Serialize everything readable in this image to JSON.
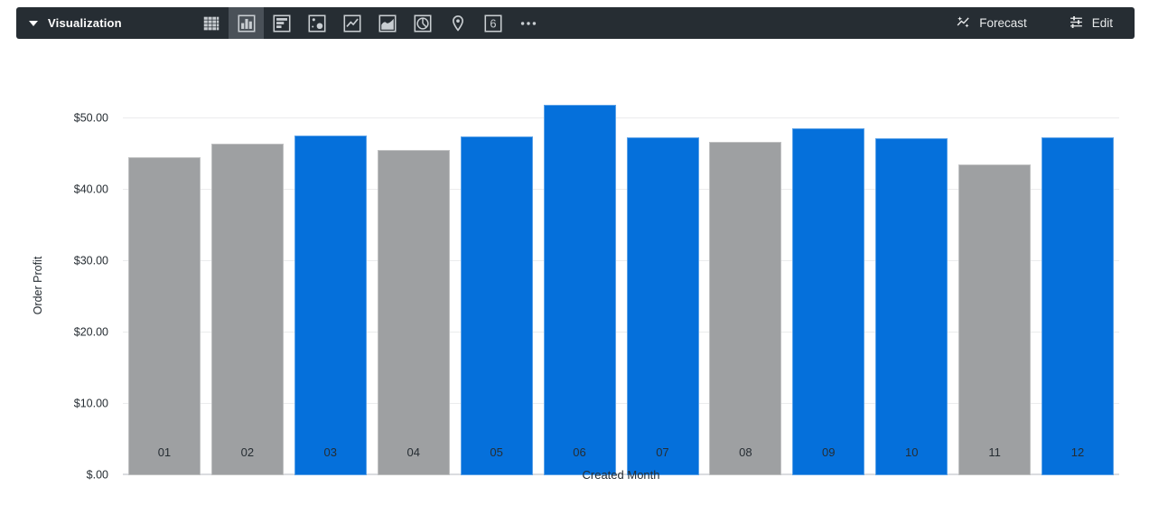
{
  "toolbar": {
    "title": "Visualization",
    "viz_icons": [
      "table",
      "column",
      "bar",
      "scatter",
      "line",
      "area",
      "pie",
      "map",
      "single-value",
      "more"
    ],
    "selected_viz": "column",
    "single_value_glyph": "6",
    "forecast_label": "Forecast",
    "edit_label": "Edit"
  },
  "chart_data": {
    "type": "bar",
    "title": "",
    "xlabel": "Created Month",
    "ylabel": "Order Profit",
    "categories": [
      "01",
      "02",
      "03",
      "04",
      "05",
      "06",
      "07",
      "08",
      "09",
      "10",
      "11",
      "12"
    ],
    "values": [
      44.6,
      46.4,
      47.6,
      45.6,
      47.5,
      51.9,
      47.3,
      46.7,
      48.6,
      47.2,
      43.6,
      47.4
    ],
    "point_colors": [
      "gray",
      "gray",
      "blue",
      "gray",
      "blue",
      "blue",
      "blue",
      "gray",
      "blue",
      "blue",
      "gray",
      "blue"
    ],
    "y_ticks": [
      {
        "value": 0,
        "label": "$.00"
      },
      {
        "value": 10,
        "label": "$10.00"
      },
      {
        "value": 20,
        "label": "$20.00"
      },
      {
        "value": 30,
        "label": "$30.00"
      },
      {
        "value": 40,
        "label": "$40.00"
      },
      {
        "value": 50,
        "label": "$50.00"
      }
    ],
    "ylim": [
      0,
      52.8
    ],
    "grid": true,
    "legend": "none"
  },
  "colors": {
    "bar_blue": "#0570DB",
    "bar_gray": "#9EA0A2",
    "toolbar_bg": "#262D33",
    "toolbar_icon": "#C9CED2",
    "selected_icon_bg": "#4A5158",
    "grid_line": "#EBECED",
    "axis_line": "#DADCE0",
    "axis_text": "#262D33"
  }
}
